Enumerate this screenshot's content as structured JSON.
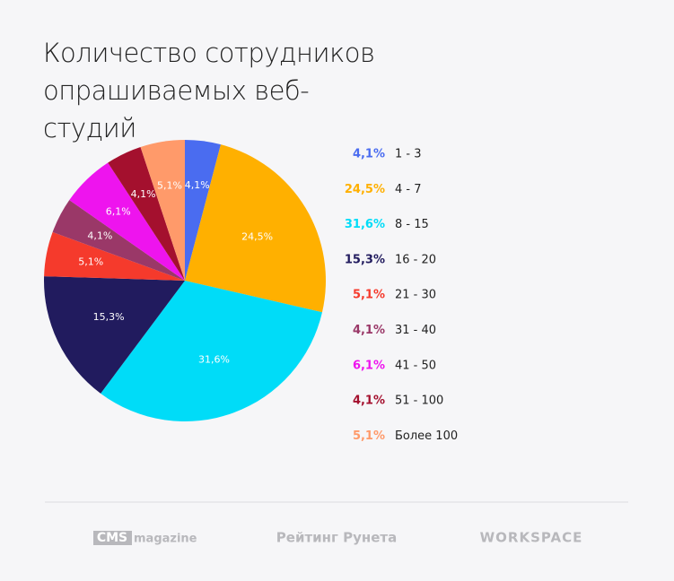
{
  "chart_data": {
    "type": "pie",
    "title": "Количество сотрудников опрашиваемых веб-студий",
    "categories": [
      "1 - 3",
      "4 - 7",
      "8 - 15",
      "16 - 20",
      "21 - 30",
      "31 - 40",
      "41 - 50",
      "51 - 100",
      "Более 100"
    ],
    "values": [
      4.1,
      24.5,
      31.6,
      15.3,
      5.1,
      4.1,
      6.1,
      4.1,
      5.1
    ],
    "value_labels": [
      "4,1%",
      "24,5%",
      "31,6%",
      "15,3%",
      "5,1%",
      "4,1%",
      "6,1%",
      "4,1%",
      "5,1%"
    ],
    "colors": [
      "#4a6cf0",
      "#ffb000",
      "#00dcf8",
      "#211b5e",
      "#f53a2c",
      "#9a3868",
      "#ee14ee",
      "#a4102e",
      "#ff9a6a"
    ],
    "legend": "right"
  },
  "footer": {
    "logos": [
      "CMS",
      "magazine",
      "Рейтинг Рунета",
      "WORKSPACE"
    ]
  }
}
